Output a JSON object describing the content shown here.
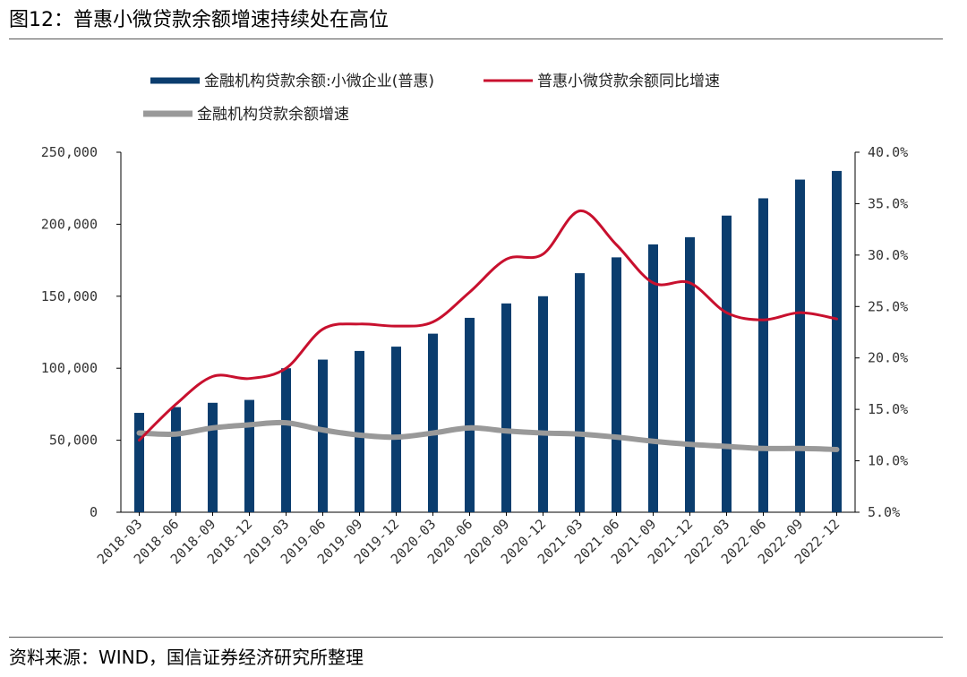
{
  "figure_title": "图12：普惠小微贷款余额增速持续处在高位",
  "source_note": "资料来源：WIND，国信证券经济研究所整理",
  "colors": {
    "bar": "#0b3d6e",
    "line_red": "#c8102e",
    "line_gray": "#999999"
  },
  "chart_data": {
    "type": "bar",
    "title": "",
    "xlabel": "",
    "ylabel": "",
    "categories": [
      "2018-03",
      "2018-06",
      "2018-09",
      "2018-12",
      "2019-03",
      "2019-06",
      "2019-09",
      "2019-12",
      "2020-03",
      "2020-06",
      "2020-09",
      "2020-12",
      "2021-03",
      "2021-06",
      "2021-09",
      "2021-12",
      "2022-03",
      "2022-06",
      "2022-09",
      "2022-12"
    ],
    "ylim": [
      0,
      250000
    ],
    "y2lim": [
      5.0,
      40.0
    ],
    "y_ticks": [
      "0",
      "50,000",
      "100,000",
      "150,000",
      "200,000",
      "250,000"
    ],
    "y2_ticks": [
      "5.0%",
      "10.0%",
      "15.0%",
      "20.0%",
      "25.0%",
      "30.0%",
      "35.0%",
      "40.0%"
    ],
    "legend_position": "top",
    "series": [
      {
        "name": "金融机构贷款余额:小微企业(普惠)",
        "type": "bar",
        "axis": "left",
        "values": [
          69000,
          73000,
          76000,
          78000,
          100000,
          106000,
          112000,
          115000,
          124000,
          135000,
          145000,
          150000,
          166000,
          177000,
          186000,
          191000,
          206000,
          218000,
          231000,
          237000
        ]
      },
      {
        "name": "普惠小微贷款余额同比增速",
        "type": "line",
        "axis": "right",
        "values": [
          12.0,
          15.5,
          18.2,
          18.0,
          19.0,
          22.8,
          23.3,
          23.1,
          23.5,
          26.4,
          29.6,
          30.1,
          34.3,
          31.0,
          27.3,
          27.3,
          24.4,
          23.7,
          24.4,
          23.8
        ]
      },
      {
        "name": "金融机构贷款余额增速",
        "type": "line",
        "axis": "right",
        "values": [
          12.7,
          12.6,
          13.2,
          13.5,
          13.7,
          13.0,
          12.5,
          12.3,
          12.7,
          13.2,
          12.9,
          12.7,
          12.6,
          12.3,
          11.9,
          11.6,
          11.4,
          11.2,
          11.2,
          11.1
        ]
      }
    ]
  }
}
